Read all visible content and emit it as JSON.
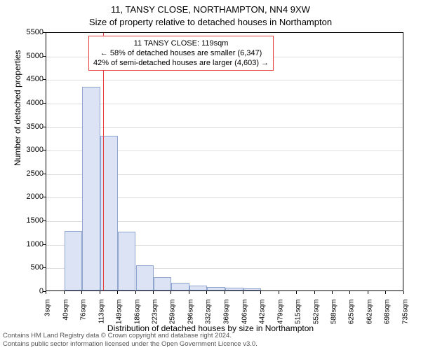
{
  "title_line1": "11, TANSY CLOSE, NORTHAMPTON, NN4 9XW",
  "title_line2": "Size of property relative to detached houses in Northampton",
  "ylabel": "Number of detached properties",
  "xlabel": "Distribution of detached houses by size in Northampton",
  "chart": {
    "type": "histogram",
    "ylim": [
      0,
      5500
    ],
    "ytick_step": 500,
    "bar_color": "#dbe3f4",
    "bar_border": "#8fa5cf",
    "grid_color": "#dddddd",
    "background_color": "#ffffff",
    "marker_color": "#e64040",
    "marker_value": 119,
    "x_categories": [
      "3sqm",
      "40sqm",
      "76sqm",
      "113sqm",
      "149sqm",
      "186sqm",
      "223sqm",
      "259sqm",
      "296sqm",
      "332sqm",
      "369sqm",
      "406sqm",
      "442sqm",
      "479sqm",
      "515sqm",
      "552sqm",
      "588sqm",
      "625sqm",
      "662sqm",
      "698sqm",
      "735sqm"
    ],
    "x_numeric_bins": [
      3,
      40,
      76,
      113,
      149,
      186,
      223,
      259,
      296,
      332,
      369,
      406,
      442,
      479,
      515,
      552,
      588,
      625,
      662,
      698,
      735
    ],
    "values": [
      0,
      1270,
      4320,
      3280,
      1250,
      530,
      280,
      170,
      100,
      70,
      60,
      40,
      0,
      0,
      0,
      0,
      0,
      0,
      0,
      0,
      0
    ]
  },
  "annotation": {
    "line1": "11 TANSY CLOSE: 119sqm",
    "line2": "← 58% of detached houses are smaller (6,347)",
    "line3": "42% of semi-detached houses are larger (4,603) →"
  },
  "footer_line1": "Contains HM Land Registry data © Crown copyright and database right 2024.",
  "footer_line2": "Contains public sector information licensed under the Open Government Licence v3.0."
}
